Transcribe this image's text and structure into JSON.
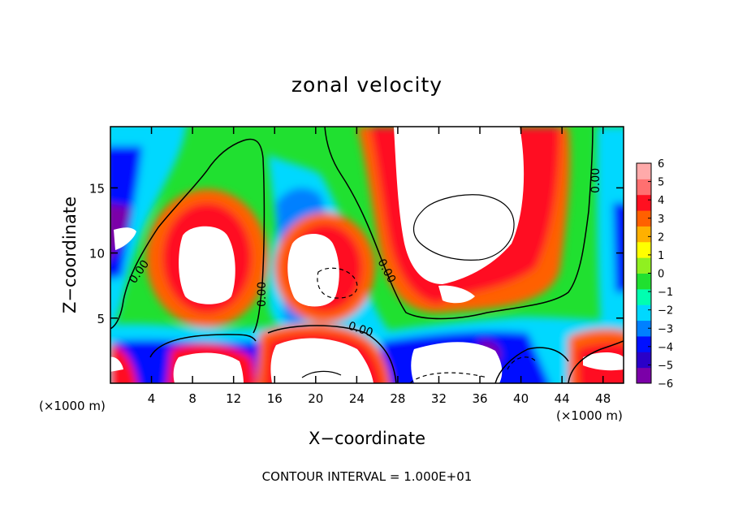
{
  "chart_data": {
    "type": "heatmap",
    "title": "zonal velocity",
    "xlabel": "X−coordinate",
    "ylabel": "Z−coordinate",
    "x_unit_left": "(×1000 m)",
    "x_unit_right": "(×1000 m)",
    "xlim": [
      0,
      50
    ],
    "ylim": [
      0,
      19.7
    ],
    "x_ticks": [
      4,
      8,
      12,
      16,
      20,
      24,
      28,
      32,
      36,
      40,
      44,
      48
    ],
    "x_tick_labels": [
      "4",
      "8",
      "12",
      "16",
      "20",
      "24",
      "28",
      "32",
      "36",
      "40",
      "44",
      "48"
    ],
    "y_ticks": [
      5,
      10,
      15
    ],
    "y_tick_labels": [
      "5",
      "10",
      "15"
    ],
    "colorbar": {
      "range": [
        -6,
        6
      ],
      "ticks": [
        6,
        5,
        4,
        3,
        2,
        1,
        0,
        -1,
        -2,
        -3,
        -4,
        -5,
        -6
      ],
      "tick_labels": [
        "6",
        "5",
        "4",
        "3",
        "2",
        "1",
        "0",
        "−1",
        "−2",
        "−3",
        "−4",
        "−5",
        "−6"
      ],
      "colors_low_to_high": [
        "#7b00a8",
        "#2a00c8",
        "#0010ff",
        "#0080ff",
        "#00d8ff",
        "#00ffb0",
        "#20e030",
        "#90f020",
        "#ffff00",
        "#ffb000",
        "#ff6000",
        "#ff1020",
        "#ff7070",
        "#ffaaaa"
      ]
    },
    "contour_labels": [
      "0.00",
      "0.00",
      "0.00",
      "0.00",
      "0.00"
    ],
    "contour_interval_text": "CONTOUR INTERVAL = 1.000E+01"
  }
}
